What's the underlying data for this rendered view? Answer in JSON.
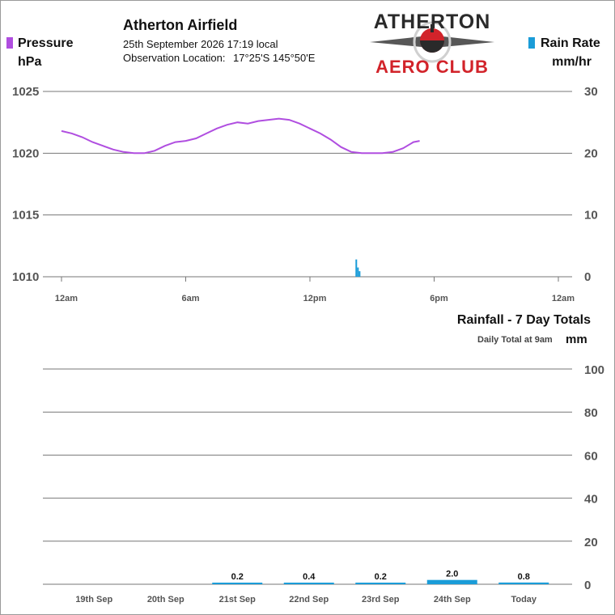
{
  "header": {
    "station": "Atherton Airfield",
    "date_line": "25th September 2026  17:19 local",
    "location_label": "Observation Location:",
    "location_value": "17°25'S 145°50'E"
  },
  "logo": {
    "line1": "ATHERTON",
    "line2": "AERO CLUB"
  },
  "colors": {
    "pressure": "#b04ee0",
    "rain": "#1a9cd8",
    "grid": "#777777",
    "text": "#111111",
    "logo_dark": "#2a2a2a",
    "logo_red": "#d2232a"
  },
  "chart_data": [
    {
      "type": "line",
      "title": "",
      "left_legend": {
        "name": "Pressure",
        "unit": "hPa"
      },
      "right_legend": {
        "name": "Rain Rate",
        "unit": "mm/hr"
      },
      "x_ticks": [
        "12am",
        "6am",
        "12pm",
        "6pm",
        "12am"
      ],
      "xlim_hours": [
        0,
        24
      ],
      "ylim_left": [
        1010,
        1025
      ],
      "ylim_right": [
        0,
        30
      ],
      "y_ticks_left": [
        "1025",
        "1020",
        "1015",
        "1010"
      ],
      "y_ticks_right": [
        "30",
        "20",
        "10",
        "0"
      ],
      "grid": true,
      "series": [
        {
          "name": "Pressure",
          "axis": "left",
          "x_hours": [
            0.0,
            0.5,
            1.0,
            1.5,
            2.0,
            2.5,
            3.0,
            3.5,
            4.0,
            4.5,
            5.0,
            5.5,
            6.0,
            6.5,
            7.0,
            7.5,
            8.0,
            8.5,
            9.0,
            9.5,
            10.0,
            10.5,
            11.0,
            11.5,
            12.0,
            12.5,
            13.0,
            13.5,
            14.0,
            14.5,
            15.0,
            15.5,
            16.0,
            16.5,
            17.0,
            17.3
          ],
          "values": [
            1021.8,
            1021.6,
            1021.3,
            1020.9,
            1020.6,
            1020.3,
            1020.1,
            1020.0,
            1020.0,
            1020.2,
            1020.6,
            1020.9,
            1021.0,
            1021.2,
            1021.6,
            1022.0,
            1022.3,
            1022.5,
            1022.4,
            1022.6,
            1022.7,
            1022.8,
            1022.7,
            1022.4,
            1022.0,
            1021.6,
            1021.1,
            1020.5,
            1020.1,
            1020.0,
            1020.0,
            1020.0,
            1020.1,
            1020.4,
            1020.9,
            1021.0
          ]
        },
        {
          "name": "Rain Rate",
          "axis": "right",
          "type": "bar",
          "x_hours": [
            14.2,
            14.28,
            14.36
          ],
          "values": [
            2.8,
            1.5,
            0.9
          ]
        }
      ]
    },
    {
      "type": "bar",
      "title": "Rainfall - 7 Day Totals",
      "subtitle": "Daily Total at 9am",
      "unit": "mm",
      "categories": [
        "19th Sep",
        "20th Sep",
        "21st Sep",
        "22nd Sep",
        "23rd Sep",
        "24th Sep",
        "Today"
      ],
      "values": [
        0,
        0,
        0.2,
        0.4,
        0.2,
        2.0,
        0.8
      ],
      "value_labels": [
        "",
        "",
        "0.2",
        "0.4",
        "0.2",
        "2.0",
        "0.8"
      ],
      "ylim": [
        0,
        100
      ],
      "y_ticks": [
        "100",
        "80",
        "60",
        "40",
        "20",
        "0"
      ],
      "grid": true
    }
  ]
}
